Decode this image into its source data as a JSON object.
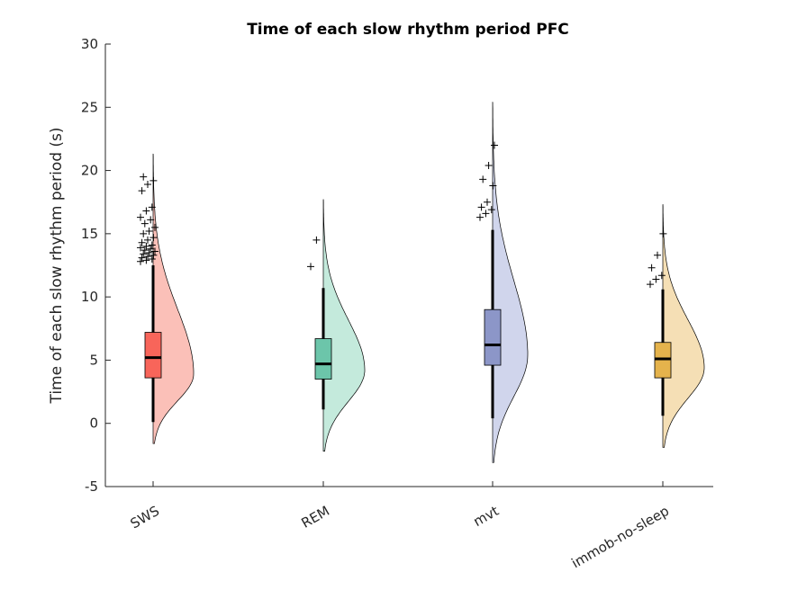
{
  "chart_data": {
    "type": "violin",
    "title": "Time of each slow rhythm period PFC",
    "xlabel": "",
    "ylabel": "Time of each slow rhythm period (s)",
    "ylim": [
      -5,
      30
    ],
    "yticks": [
      -5,
      0,
      5,
      10,
      15,
      20,
      25,
      30
    ],
    "grid": false,
    "categories": [
      "SWS",
      "REM",
      "mvt",
      "immob-no-sleep"
    ],
    "series": [
      {
        "color": "#f8655a",
        "fill": "#fbc0b8",
        "box": {
          "q1": 3.6,
          "median": 5.2,
          "q3": 7.2
        },
        "whisker": {
          "low": 0.1,
          "high": 12.5
        },
        "density": {
          "min": -1.6,
          "max": 21.3,
          "peak": 3.9,
          "width": 0.9
        },
        "outliers": [
          12.8,
          12.9,
          13.0,
          13.1,
          13.2,
          13.3,
          13.4,
          13.5,
          13.6,
          13.7,
          13.8,
          13.9,
          14.0,
          14.1,
          14.3,
          14.5,
          14.7,
          15.0,
          15.2,
          15.5,
          15.8,
          16.1,
          16.3,
          16.8,
          17.1,
          18.4,
          18.9,
          19.2,
          19.5
        ]
      },
      {
        "color": "#6cc5aa",
        "fill": "#c4eadc",
        "box": {
          "q1": 3.5,
          "median": 4.7,
          "q3": 6.7
        },
        "whisker": {
          "low": 1.1,
          "high": 10.7
        },
        "density": {
          "min": -2.2,
          "max": 17.7,
          "peak": 4.2,
          "width": 0.92
        },
        "outliers": [
          12.4,
          14.5
        ]
      },
      {
        "color": "#8c96c8",
        "fill": "#d0d5ec",
        "box": {
          "q1": 4.6,
          "median": 6.2,
          "q3": 9.0
        },
        "whisker": {
          "low": 0.4,
          "high": 15.3
        },
        "density": {
          "min": -3.1,
          "max": 25.4,
          "peak": 5.4,
          "width": 0.78
        },
        "outliers": [
          16.3,
          16.6,
          16.9,
          17.1,
          17.5,
          18.8,
          19.3,
          20.4,
          22.0
        ]
      },
      {
        "color": "#e5b34c",
        "fill": "#f5dfb5",
        "box": {
          "q1": 3.6,
          "median": 5.1,
          "q3": 6.4
        },
        "whisker": {
          "low": 0.6,
          "high": 10.6
        },
        "density": {
          "min": -1.9,
          "max": 17.3,
          "peak": 4.4,
          "width": 0.92
        },
        "outliers": [
          11.0,
          11.4,
          11.7,
          12.3,
          13.3,
          15.0
        ]
      }
    ]
  }
}
